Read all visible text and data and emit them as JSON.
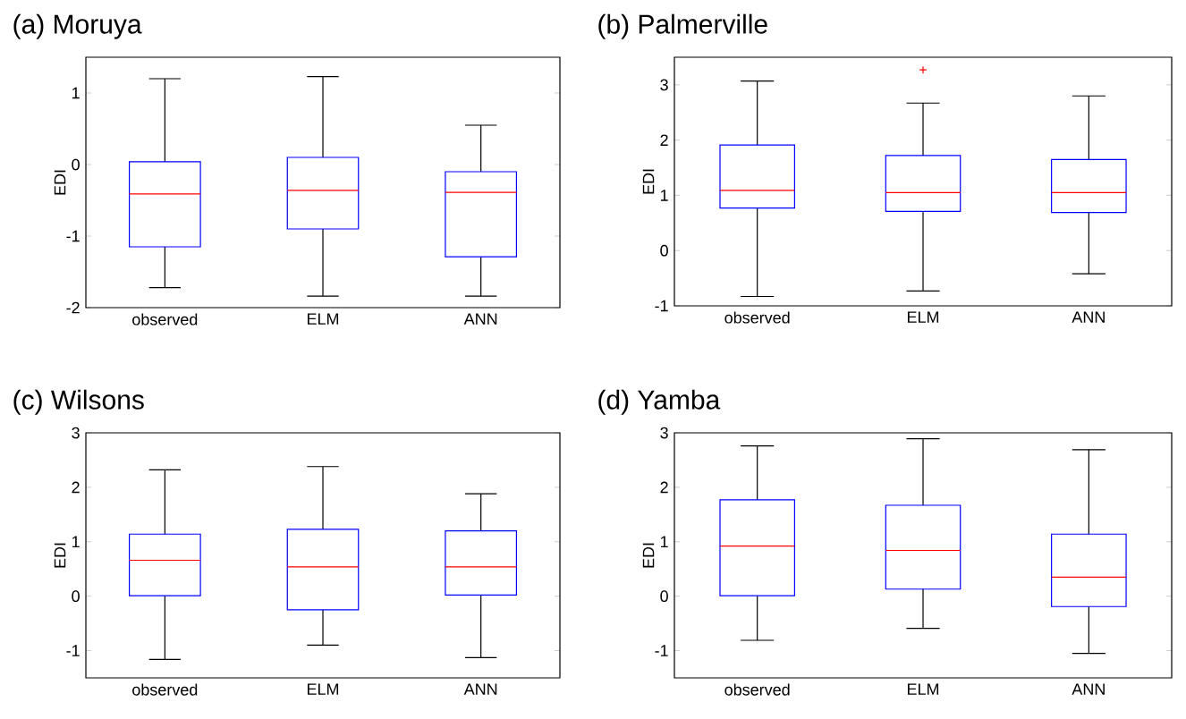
{
  "chart_data": [
    {
      "type": "box",
      "title": "(a) Moruya",
      "ylabel": "EDI",
      "categories": [
        "observed",
        "ELM",
        "ANN"
      ],
      "color": "#0000ff",
      "ylim": [
        -2,
        1.5
      ],
      "yticks": [
        -2,
        -1,
        0,
        1
      ],
      "boxes": [
        {
          "low": -1.72,
          "q1": -1.15,
          "median": -0.41,
          "q3": 0.04,
          "high": 1.2
        },
        {
          "low": -1.84,
          "q1": -0.9,
          "median": -0.36,
          "q3": 0.1,
          "high": 1.23
        },
        {
          "low": -1.84,
          "q1": -1.29,
          "median": -0.39,
          "q3": -0.1,
          "high": 0.55
        }
      ]
    },
    {
      "type": "box",
      "title": "(b) Palmerville",
      "ylabel": "EDI",
      "categories": [
        "observed",
        "ELM",
        "ANN"
      ],
      "color": "#0000ff",
      "ylim": [
        -1,
        3.5
      ],
      "yticks": [
        -1,
        0,
        1,
        2,
        3
      ],
      "boxes": [
        {
          "low": -0.83,
          "q1": 0.77,
          "median": 1.09,
          "q3": 1.91,
          "high": 3.07
        },
        {
          "low": -0.73,
          "q1": 0.71,
          "median": 1.05,
          "q3": 1.72,
          "high": 2.67,
          "outliers": [
            3.27
          ]
        },
        {
          "low": -0.42,
          "q1": 0.69,
          "median": 1.05,
          "q3": 1.65,
          "high": 2.8
        }
      ]
    },
    {
      "type": "box",
      "title": "(c) Wilsons",
      "ylabel": "EDI",
      "categories": [
        "observed",
        "ELM",
        "ANN"
      ],
      "color": "#0000ff",
      "ylim": [
        -1.5,
        3
      ],
      "yticks": [
        -1,
        0,
        1,
        2,
        3
      ],
      "boxes": [
        {
          "low": -1.16,
          "q1": 0.01,
          "median": 0.66,
          "q3": 1.14,
          "high": 2.32
        },
        {
          "low": -0.9,
          "q1": -0.25,
          "median": 0.54,
          "q3": 1.23,
          "high": 2.38
        },
        {
          "low": -1.13,
          "q1": 0.02,
          "median": 0.54,
          "q3": 1.2,
          "high": 1.88
        }
      ]
    },
    {
      "type": "box",
      "title": "(d) Yamba",
      "ylabel": "EDI",
      "categories": [
        "observed",
        "ELM",
        "ANN"
      ],
      "color": "#0000ff",
      "ylim": [
        -1.5,
        3
      ],
      "yticks": [
        -1,
        0,
        1,
        2,
        3
      ],
      "boxes": [
        {
          "low": -0.81,
          "q1": 0.01,
          "median": 0.92,
          "q3": 1.77,
          "high": 2.76
        },
        {
          "low": -0.59,
          "q1": 0.13,
          "median": 0.84,
          "q3": 1.67,
          "high": 2.89
        },
        {
          "low": -1.05,
          "q1": -0.19,
          "median": 0.35,
          "q3": 1.14,
          "high": 2.69
        }
      ]
    }
  ]
}
